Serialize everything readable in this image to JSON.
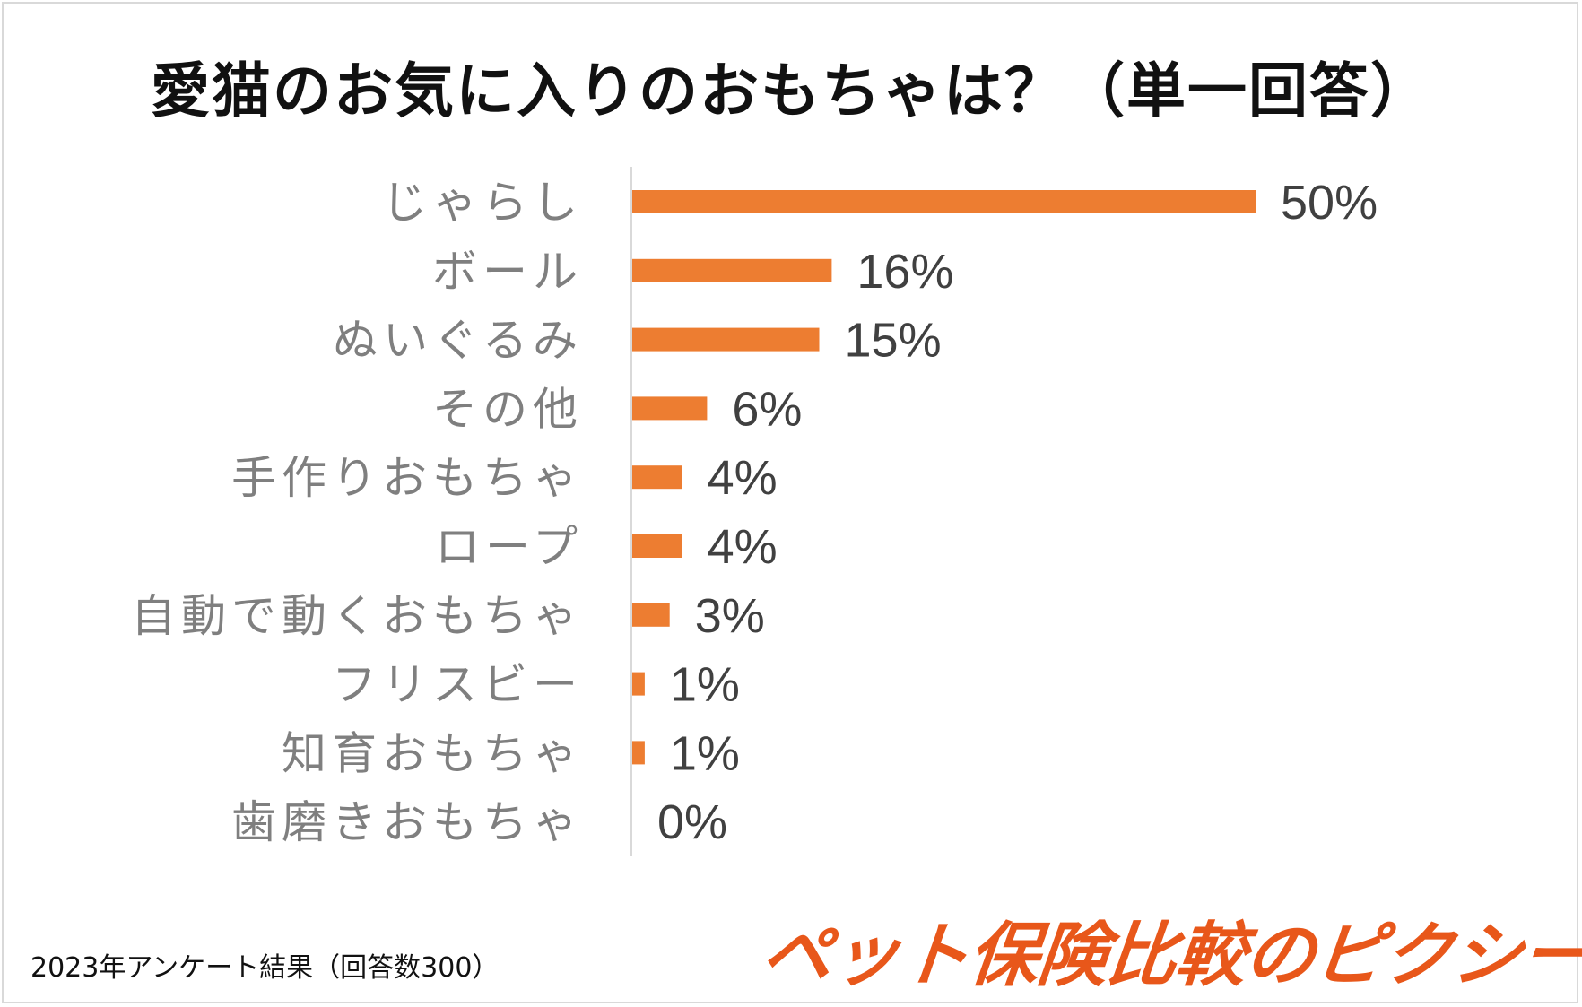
{
  "chart_data": {
    "type": "bar",
    "orientation": "horizontal",
    "title": "愛猫のお気に入りのおもちゃは？（単一回答）",
    "categories": [
      "じゃらし",
      "ボール",
      "ぬいぐるみ",
      "その他",
      "手作りおもちゃ",
      "ロープ",
      "自動で動くおもちゃ",
      "フリスビー",
      "知育おもちゃ",
      "歯磨きおもちゃ"
    ],
    "values": [
      50,
      16,
      15,
      6,
      4,
      4,
      3,
      1,
      1,
      0
    ],
    "value_labels": [
      "50%",
      "16%",
      "15%",
      "6%",
      "4%",
      "4%",
      "3%",
      "1%",
      "1%",
      "0%"
    ],
    "unit": "%",
    "xlim": [
      0,
      55
    ],
    "bar_color": "#ed7d31",
    "xlabel": "",
    "ylabel": ""
  },
  "footnote": "2023年アンケート結果（回答数300）",
  "brand_logo": "ペット保険比較のピクシー"
}
